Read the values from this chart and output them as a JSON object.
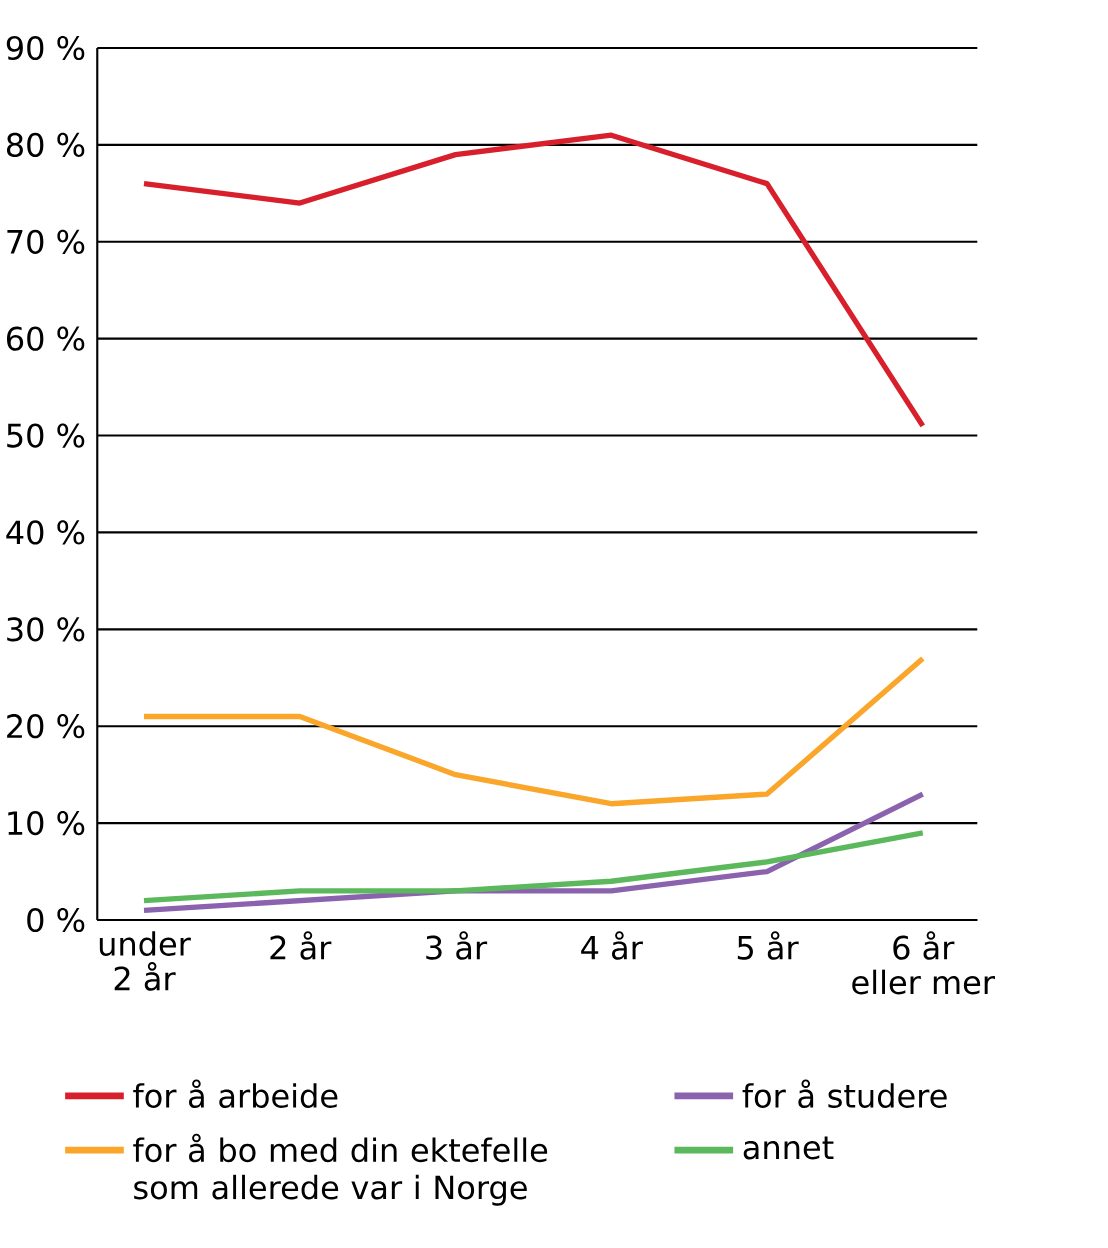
{
  "chart_data": {
    "type": "line",
    "categories": [
      "under\n2 år",
      "2 år",
      "3 år",
      "4 år",
      "5 år",
      "6 år\neller mer"
    ],
    "series": [
      {
        "name": "for å arbeide",
        "color": "#d7202c",
        "values": [
          76,
          74,
          79,
          81,
          76,
          51
        ]
      },
      {
        "name": "for å studere",
        "color": "#8b62ad",
        "values": [
          1,
          2,
          3,
          3,
          5,
          13
        ]
      },
      {
        "name": "for å bo med din ektefelle som allerede var i Norge",
        "color": "#f9a62b",
        "values": [
          21,
          21,
          15,
          12,
          13,
          27
        ]
      },
      {
        "name": "annet",
        "color": "#5cb85c",
        "values": [
          2,
          3,
          3,
          4,
          6,
          9
        ]
      }
    ],
    "ylim": [
      0,
      90
    ],
    "yticks": [
      {
        "value": 0,
        "label": "0 %"
      },
      {
        "value": 10,
        "label": "10 %"
      },
      {
        "value": 20,
        "label": "20 %"
      },
      {
        "value": 30,
        "label": "30 %"
      },
      {
        "value": 40,
        "label": "40 %"
      },
      {
        "value": 50,
        "label": "50 %"
      },
      {
        "value": 60,
        "label": "60 %"
      },
      {
        "value": 70,
        "label": "70 %"
      },
      {
        "value": 80,
        "label": "80 %"
      },
      {
        "value": 90,
        "label": "90 %"
      }
    ],
    "grid": "y",
    "legend": "bottom"
  }
}
